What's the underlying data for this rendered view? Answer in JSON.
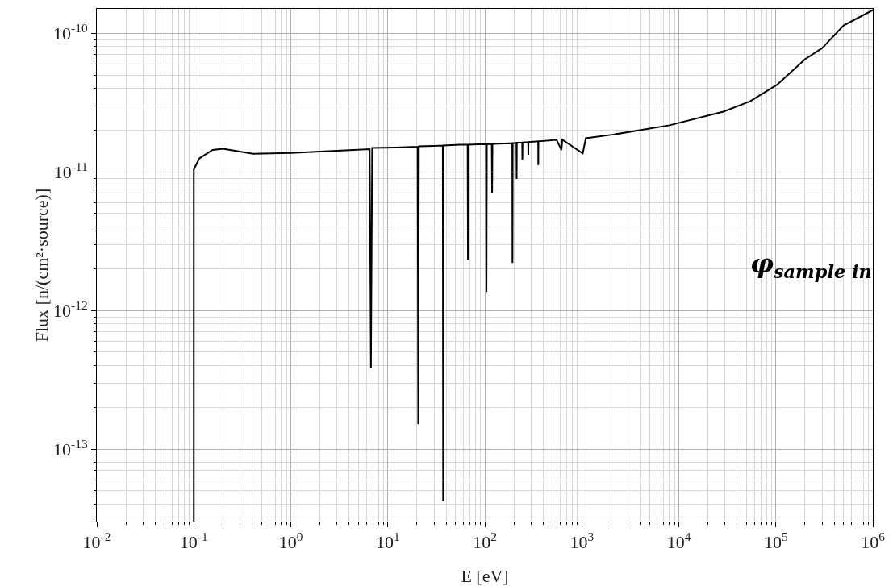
{
  "chart_data": {
    "type": "line",
    "xlabel": "E [eV]",
    "ylabel": "Flux [n/(cm²·source)]",
    "annotations": [
      "φ$_{sample in}$"
    ],
    "log": "xy",
    "grid": true,
    "marker": "none",
    "line_style": "solid",
    "xlim": [
      0.01,
      1000000
    ],
    "ylim": [
      3e-14,
      1.5e-10
    ],
    "xticks": [
      {
        "value": 0.01,
        "label": "10$^{-2}$"
      },
      {
        "value": 0.1,
        "label": "10$^{-1}$"
      },
      {
        "value": 1,
        "label": "10$^{0}$"
      },
      {
        "value": 10,
        "label": "10$^{1}$"
      },
      {
        "value": 100,
        "label": "10$^{2}$"
      },
      {
        "value": 1000,
        "label": "10$^{3}$"
      },
      {
        "value": 10000,
        "label": "10$^{4}$"
      },
      {
        "value": 100000,
        "label": "10$^{5}$"
      },
      {
        "value": 1000000,
        "label": "10$^{6}$"
      }
    ],
    "yticks": [
      {
        "value": 1e-13,
        "label": "10$^{-13}$"
      },
      {
        "value": 1e-12,
        "label": "10$^{-12}$"
      },
      {
        "value": 1e-11,
        "label": "10$^{-11}$"
      },
      {
        "value": 1e-10,
        "label": "10$^{-10}$"
      }
    ],
    "series": [
      {
        "color": "#000000",
        "x": [
          0.1,
          0.1,
          0.114,
          0.156,
          0.2,
          0.407,
          1,
          3,
          6.5,
          6.7,
          6.9,
          12,
          20.3,
          20.6,
          20.9,
          30,
          36.9,
          37.2,
          37.5,
          55,
          66.5,
          67,
          67.5,
          85,
          103,
          104,
          105,
          118,
          119,
          120,
          160,
          192,
          193,
          194,
          212,
          213,
          214,
          243,
          244,
          245,
          280,
          281,
          282,
          355,
          356,
          357,
          550,
          617,
          630,
          1023,
          1100,
          2118,
          8030,
          28800,
          54400,
          103000,
          200000,
          300000,
          500000,
          1000000
        ],
        "values": [
          3e-14,
          1.04e-11,
          1.25e-11,
          1.44e-11,
          1.47e-11,
          1.35e-11,
          1.37e-11,
          1.42e-11,
          1.46e-11,
          3.86e-13,
          1.49e-11,
          1.5e-11,
          1.52e-11,
          1.51e-13,
          1.53e-11,
          1.54e-11,
          1.55e-11,
          4.2e-14,
          1.55e-11,
          1.57e-11,
          1.57e-11,
          2.32e-12,
          1.57e-11,
          1.58e-11,
          1.58e-11,
          1.36e-12,
          1.58e-11,
          1.59e-11,
          7e-12,
          1.59e-11,
          1.6e-11,
          1.61e-11,
          2.2e-12,
          1.61e-11,
          1.62e-11,
          8.9e-12,
          1.62e-11,
          1.63e-11,
          1.22e-11,
          1.63e-11,
          1.64e-11,
          1.33e-11,
          1.64e-11,
          1.66e-11,
          1.12e-11,
          1.66e-11,
          1.7e-11,
          1.44e-11,
          1.71e-11,
          1.36e-11,
          1.75e-11,
          1.86e-11,
          2.17e-11,
          2.72e-11,
          3.23e-11,
          4.25e-11,
          6.5e-11,
          7.8e-11,
          1.14e-10,
          1.47e-10
        ]
      }
    ]
  }
}
